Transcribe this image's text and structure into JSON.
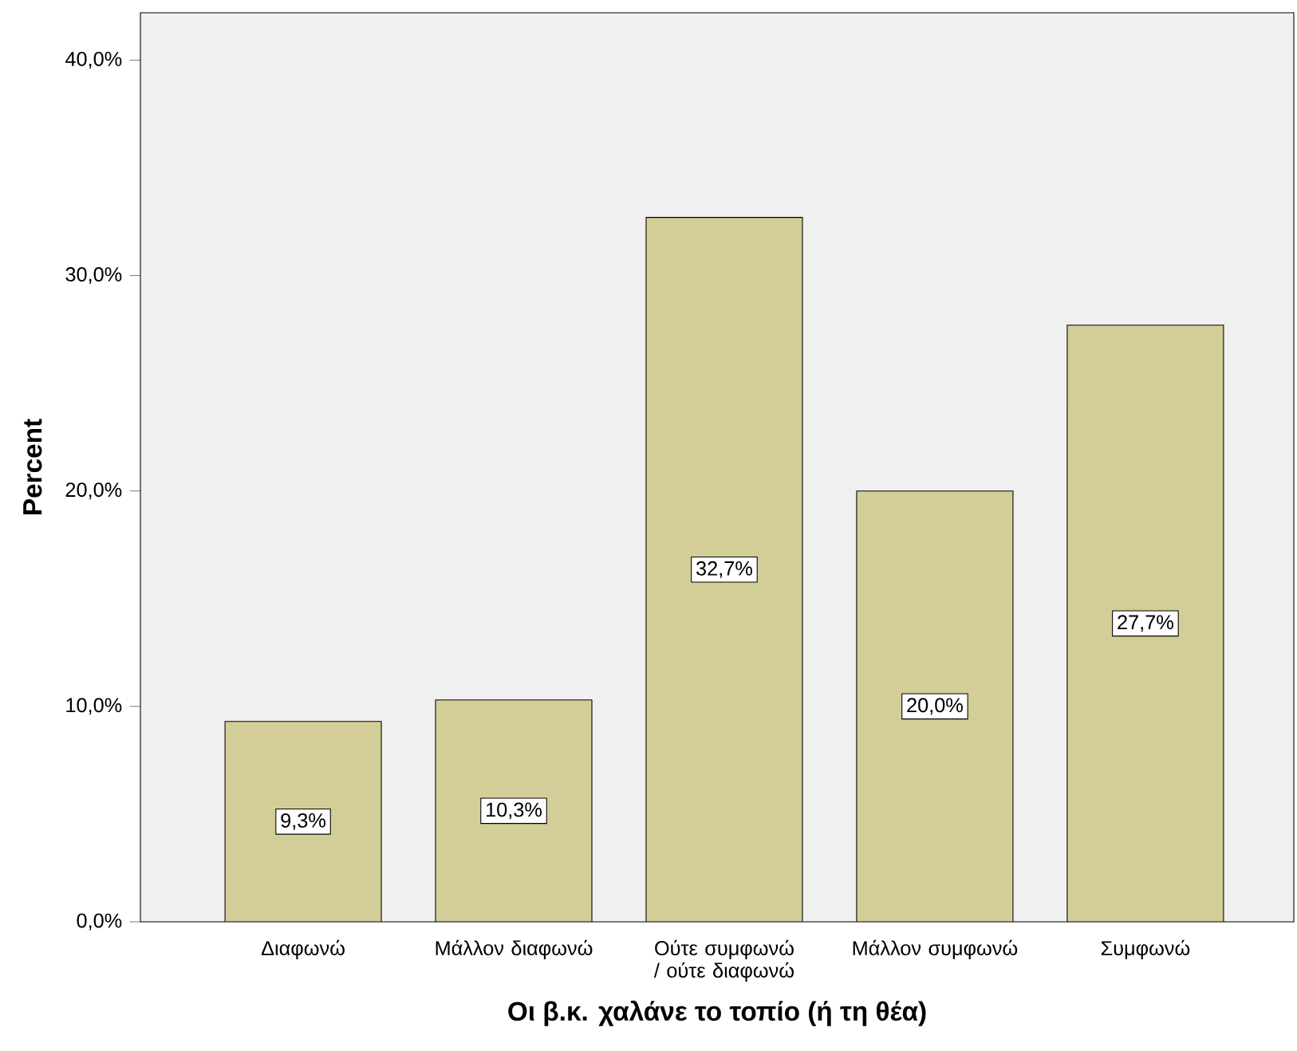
{
  "chart_data": {
    "type": "bar",
    "xlabel": "Οι β.κ. χαλάνε το τοπίο (ή τη θέα)",
    "ylabel": "Percent",
    "categories": [
      "Διαφωνώ",
      "Μάλλον διαφωνώ",
      "Ούτε συμφωνώ / ούτε διαφωνώ",
      "Μάλλον συμφωνώ",
      "Συμφωνώ"
    ],
    "values": [
      9.3,
      10.3,
      32.7,
      20.0,
      27.7
    ],
    "value_labels": [
      "9,3%",
      "10,3%",
      "32,7%",
      "20,0%",
      "27,7%"
    ],
    "color": "#d3ce98",
    "ylim": [
      0,
      42.2
    ],
    "yticks": [
      {
        "value": 0,
        "label": "0,0%"
      },
      {
        "value": 10,
        "label": "10,0%"
      },
      {
        "value": 20,
        "label": "20,0%"
      },
      {
        "value": 30,
        "label": "30,0%"
      },
      {
        "value": 40,
        "label": "40,0%"
      }
    ],
    "grid": false
  }
}
